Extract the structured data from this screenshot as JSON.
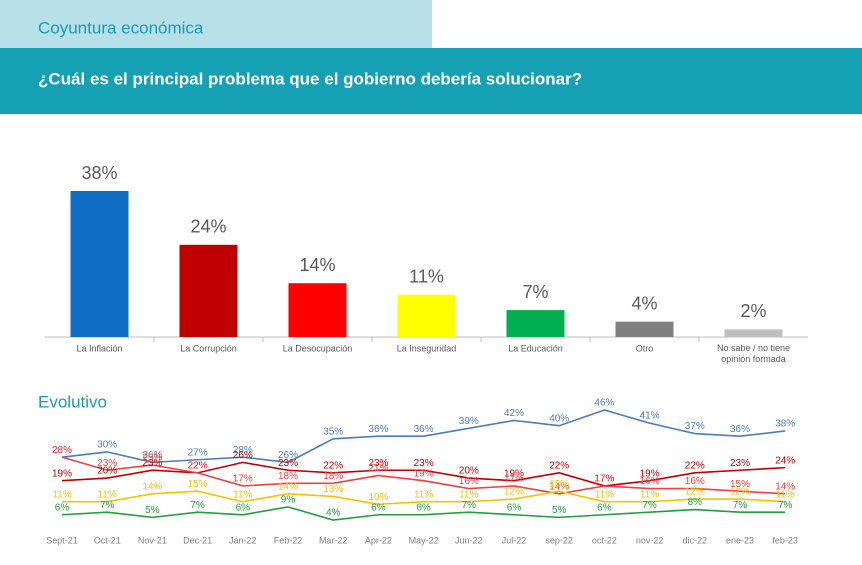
{
  "header": {
    "section": "Coyuntura económica",
    "question": "¿Cuál es el principal problema que el gobierno debería solucionar?"
  },
  "chart_data": [
    {
      "type": "bar",
      "categories": [
        "La Inflación",
        "La Corrupción",
        "La Desocupación",
        "La Inseguridad",
        "La Educación",
        "Otro",
        "No sabe / no tiene opinión formada"
      ],
      "values": [
        38,
        24,
        14,
        11,
        7,
        4,
        2
      ],
      "value_labels": [
        "38%",
        "24%",
        "14%",
        "11%",
        "7%",
        "4%",
        "2%"
      ],
      "colors": [
        "#0f6cc3",
        "#c00000",
        "#ff0000",
        "#ffff00",
        "#00b050",
        "#7f7f7f",
        "#bfbfbf"
      ]
    },
    {
      "type": "line",
      "title": "Evolutivo",
      "categories": [
        "Sept-21",
        "Oct-21",
        "Nov-21",
        "Dec-21",
        "Jan-22",
        "Feb-22",
        "Mar-22",
        "Apr-22",
        "May-22",
        "Jun-22",
        "Jul-22",
        "sep-22",
        "oct-22",
        "nov-22",
        "dic-22",
        "ene-23",
        "feb-23"
      ],
      "series": [
        {
          "name": "La Inflación",
          "color": "#4a7ebb",
          "values": [
            28,
            30,
            26,
            27,
            28,
            26,
            35,
            36,
            36,
            39,
            42,
            40,
            46,
            41,
            37,
            36,
            38
          ]
        },
        {
          "name": "La Corrupción",
          "color": "#c00000",
          "values": [
            19,
            20,
            23,
            22,
            26,
            23,
            22,
            23,
            23,
            20,
            19,
            22,
            17,
            19,
            22,
            23,
            24
          ]
        },
        {
          "name": "La Desocupación",
          "color": "#f04040",
          "values": [
            28,
            23,
            25,
            22,
            17,
            18,
            18,
            21,
            19,
            16,
            17,
            14,
            17,
            16,
            16,
            15,
            14
          ]
        },
        {
          "name": "La Inseguridad",
          "color": "#f5c400",
          "values": [
            11,
            11,
            14,
            15,
            11,
            14,
            13,
            10,
            11,
            11,
            12,
            15,
            11,
            11,
            12,
            12,
            11
          ]
        },
        {
          "name": "La Educación",
          "color": "#1ea03c",
          "values": [
            6,
            7,
            5,
            7,
            6,
            9,
            4,
            6,
            6,
            7,
            6,
            5,
            6,
            7,
            8,
            7,
            7
          ]
        }
      ]
    }
  ]
}
